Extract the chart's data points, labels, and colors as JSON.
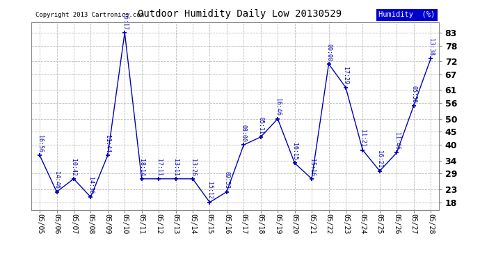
{
  "title": "Outdoor Humidity Daily Low 20130529",
  "copyright": "Copyright 2013 Cartronics.com",
  "legend_label": "Humidity  (%)",
  "background_color": "#ffffff",
  "grid_color": "#cccccc",
  "line_color": "#0000bb",
  "text_color": "#0000bb",
  "ylim": [
    15,
    87
  ],
  "yticks": [
    18,
    23,
    29,
    34,
    40,
    45,
    50,
    56,
    61,
    67,
    72,
    78,
    83
  ],
  "dates": [
    "05/05",
    "05/06",
    "05/07",
    "05/08",
    "05/09",
    "05/10",
    "05/11",
    "05/12",
    "05/13",
    "05/14",
    "05/15",
    "05/16",
    "05/17",
    "05/18",
    "05/19",
    "05/20",
    "05/21",
    "05/22",
    "05/23",
    "05/24",
    "05/25",
    "05/26",
    "05/27",
    "05/28"
  ],
  "values": [
    36,
    22,
    27,
    20,
    36,
    83,
    27,
    27,
    27,
    27,
    18,
    22,
    40,
    43,
    50,
    33,
    27,
    71,
    62,
    38,
    30,
    37,
    55,
    73
  ],
  "labels": [
    "16:56",
    "14:46",
    "10:42",
    "14:36",
    "11:44",
    "16:17",
    "18:14",
    "17:11",
    "13:11",
    "13:26",
    "15:12",
    "09:53",
    "08:00",
    "05:11",
    "16:46",
    "16:15",
    "15:16",
    "00:00",
    "17:29",
    "11:21",
    "16:21",
    "11:46",
    "05:56",
    "13:38"
  ]
}
